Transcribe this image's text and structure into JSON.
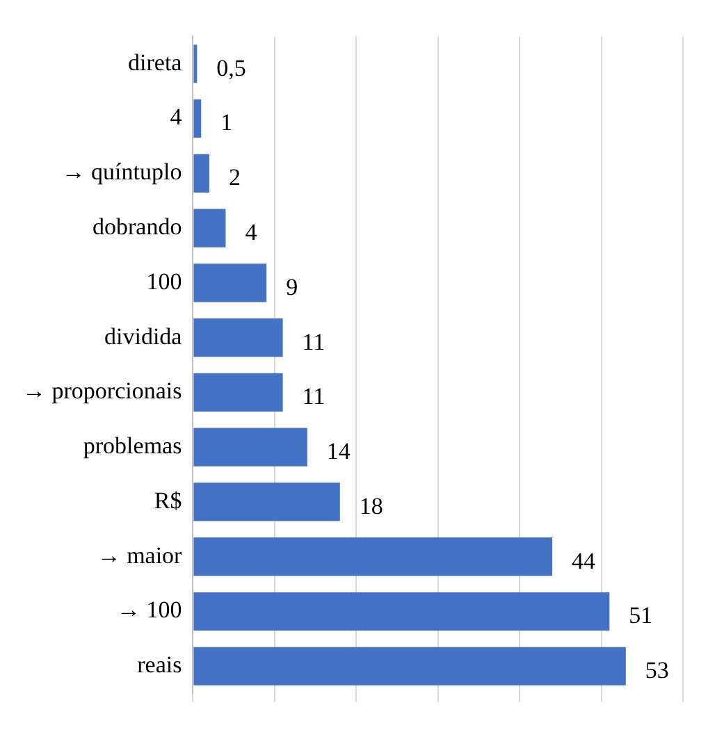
{
  "chart_data": {
    "type": "bar",
    "orientation": "horizontal",
    "categories": [
      "direta",
      "4",
      "→ quíntuplo",
      "dobrando",
      "100",
      "dividida",
      "→ proporcionais",
      "problemas",
      "R$",
      "→ maior",
      "→ 100",
      "reais"
    ],
    "values": [
      0.5,
      1,
      2,
      4,
      9,
      11,
      11,
      14,
      18,
      44,
      51,
      53
    ],
    "value_labels": [
      "0,5",
      "1",
      "2",
      "4",
      "9",
      "11",
      "11",
      "14",
      "18",
      "44",
      "51",
      "53"
    ],
    "color": "#4472c4",
    "grid": "x",
    "tick_labels": "y",
    "legend": false
  }
}
